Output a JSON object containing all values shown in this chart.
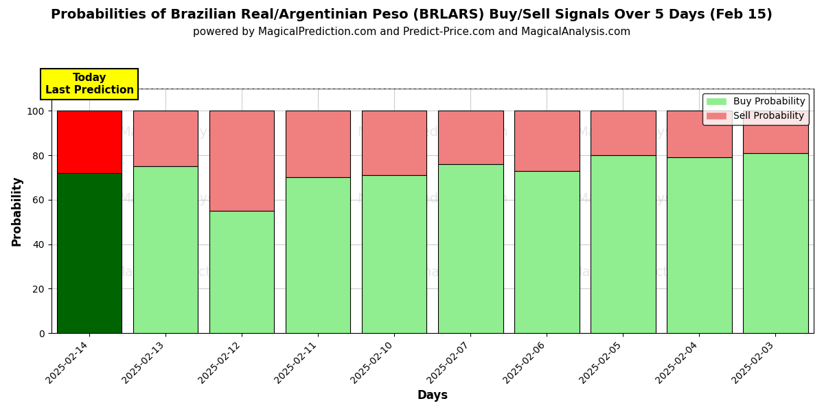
{
  "title": "Probabilities of Brazilian Real/Argentinian Peso (BRLARS) Buy/Sell Signals Over 5 Days (Feb 15)",
  "subtitle": "powered by MagicalPrediction.com and Predict-Price.com and MagicalAnalysis.com",
  "xlabel": "Days",
  "ylabel": "Probability",
  "categories": [
    "2025-02-14",
    "2025-02-13",
    "2025-02-12",
    "2025-02-11",
    "2025-02-10",
    "2025-02-07",
    "2025-02-06",
    "2025-02-05",
    "2025-02-04",
    "2025-02-03"
  ],
  "buy_values": [
    72,
    75,
    55,
    70,
    71,
    76,
    73,
    80,
    79,
    81
  ],
  "sell_values": [
    28,
    25,
    45,
    30,
    29,
    24,
    27,
    20,
    21,
    19
  ],
  "buy_color_special": "#006400",
  "sell_color_special": "#ff0000",
  "buy_color_normal": "#90EE90",
  "sell_color_normal": "#F08080",
  "today_bar_index": 0,
  "ylim": [
    0,
    110
  ],
  "yticks": [
    0,
    20,
    40,
    60,
    80,
    100
  ],
  "dashed_line_y": 110,
  "legend_buy_label": "Buy Probability",
  "legend_sell_label": "Sell Probability",
  "annotation_text": "Today\nLast Prediction",
  "annotation_bg": "#ffff00",
  "grid_color": "#cccccc",
  "bar_edge_color": "black",
  "bar_edge_width": 0.8,
  "title_fontsize": 14,
  "subtitle_fontsize": 11,
  "axis_label_fontsize": 12,
  "tick_fontsize": 10,
  "bar_width": 0.85
}
